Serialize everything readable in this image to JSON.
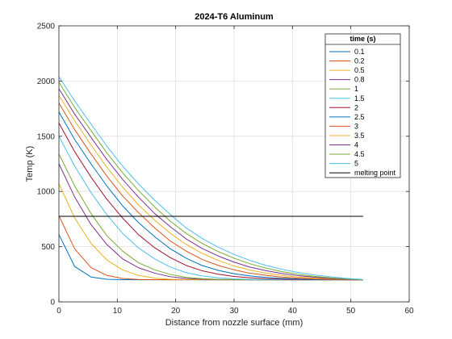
{
  "chart_data": {
    "type": "line",
    "title": "2024-T6 Aluminum",
    "xlabel": "Distance from nozzle surface (mm)",
    "ylabel": "Temp (K)",
    "xlim": [
      0,
      60
    ],
    "ylim": [
      0,
      2500
    ],
    "xticks": [
      "0",
      "10",
      "20",
      "30",
      "40",
      "50",
      "60"
    ],
    "yticks": [
      "0",
      "500",
      "1000",
      "1500",
      "2000",
      "2500"
    ],
    "grid": true,
    "legend": {
      "title": "time (s)",
      "placement": "top-right"
    },
    "series": [
      {
        "name": "0.1",
        "color": "#0072BD",
        "x": [
          0,
          2.7,
          5.5,
          8.2,
          10.9,
          13.6,
          16.4,
          19.1,
          21.8,
          24.5,
          27.3,
          30,
          32.7,
          35.5,
          38.2,
          40.9,
          43.6,
          46.4,
          49.1,
          51.8,
          52.1
        ],
        "y": [
          610,
          320,
          225,
          205,
          201,
          200,
          200,
          200,
          200,
          200,
          200,
          200,
          200,
          200,
          200,
          200,
          200,
          200,
          200,
          200,
          200
        ]
      },
      {
        "name": "0.2",
        "color": "#D95319",
        "x": [
          0,
          2.7,
          5.5,
          8.2,
          10.9,
          13.6,
          16.4,
          19.1,
          21.8,
          24.5,
          27.3,
          30,
          32.7,
          35.5,
          38.2,
          40.9,
          43.6,
          46.4,
          49.1,
          51.8,
          52.1
        ],
        "y": [
          780,
          480,
          310,
          240,
          212,
          203,
          201,
          200,
          200,
          200,
          200,
          200,
          200,
          200,
          200,
          200,
          200,
          200,
          200,
          200,
          200
        ]
      },
      {
        "name": "0.5",
        "color": "#EDB120",
        "x": [
          0,
          2.7,
          5.5,
          8.2,
          10.9,
          13.6,
          16.4,
          19.1,
          21.8,
          24.5,
          27.3,
          30,
          32.7,
          35.5,
          38.2,
          40.9,
          43.6,
          46.4,
          49.1,
          51.8,
          52.1
        ],
        "y": [
          1070,
          760,
          530,
          380,
          290,
          240,
          215,
          205,
          202,
          201,
          200,
          200,
          200,
          200,
          200,
          200,
          200,
          200,
          200,
          200,
          200
        ]
      },
      {
        "name": "0.8",
        "color": "#7E2F8E",
        "x": [
          0,
          2.7,
          5.5,
          8.2,
          10.9,
          13.6,
          16.4,
          19.1,
          21.8,
          24.5,
          27.3,
          30,
          32.7,
          35.5,
          38.2,
          40.9,
          43.6,
          46.4,
          49.1,
          51.8,
          52.1
        ],
        "y": [
          1250,
          950,
          700,
          520,
          390,
          310,
          260,
          228,
          212,
          205,
          202,
          201,
          200,
          200,
          200,
          200,
          200,
          200,
          200,
          200,
          200
        ]
      },
      {
        "name": "1",
        "color": "#77AC30",
        "x": [
          0,
          2.7,
          5.5,
          8.2,
          10.9,
          13.6,
          16.4,
          19.1,
          21.8,
          24.5,
          27.3,
          30,
          32.7,
          35.5,
          38.2,
          40.9,
          43.6,
          46.4,
          49.1,
          51.8,
          52.1
        ],
        "y": [
          1340,
          1050,
          800,
          600,
          460,
          355,
          290,
          248,
          222,
          210,
          204,
          202,
          201,
          200,
          200,
          200,
          200,
          200,
          200,
          200,
          200
        ]
      },
      {
        "name": "1.5",
        "color": "#4DBEEE",
        "x": [
          0,
          2.7,
          5.5,
          8.2,
          10.9,
          13.6,
          16.4,
          19.1,
          21.8,
          24.5,
          27.3,
          30,
          32.7,
          35.5,
          38.2,
          40.9,
          43.6,
          46.4,
          49.1,
          51.8,
          52.1
        ],
        "y": [
          1500,
          1230,
          990,
          790,
          620,
          490,
          390,
          315,
          265,
          235,
          218,
          208,
          204,
          202,
          201,
          200,
          200,
          200,
          200,
          200,
          200
        ]
      },
      {
        "name": "2",
        "color": "#A2142F",
        "x": [
          0,
          2.7,
          5.5,
          8.2,
          10.9,
          13.6,
          16.4,
          19.1,
          21.8,
          24.5,
          27.3,
          30,
          32.7,
          35.5,
          38.2,
          40.9,
          43.6,
          46.4,
          49.1,
          51.8,
          52.1
        ],
        "y": [
          1620,
          1360,
          1130,
          930,
          760,
          610,
          490,
          400,
          330,
          282,
          250,
          230,
          218,
          210,
          206,
          203,
          202,
          201,
          200,
          200,
          200
        ]
      },
      {
        "name": "2.5",
        "color": "#0072BD",
        "x": [
          0,
          2.7,
          5.5,
          8.2,
          10.9,
          13.6,
          16.4,
          19.1,
          21.8,
          24.5,
          27.3,
          30,
          32.7,
          35.5,
          38.2,
          40.9,
          43.6,
          46.4,
          49.1,
          51.8,
          52.1
        ],
        "y": [
          1720,
          1470,
          1250,
          1050,
          870,
          720,
          590,
          480,
          395,
          330,
          285,
          255,
          235,
          222,
          213,
          207,
          204,
          202,
          201,
          200,
          200
        ]
      },
      {
        "name": "3",
        "color": "#D95319",
        "x": [
          0,
          2.7,
          5.5,
          8.2,
          10.9,
          13.6,
          16.4,
          19.1,
          21.8,
          24.5,
          27.3,
          30,
          32.7,
          35.5,
          38.2,
          40.9,
          43.6,
          46.4,
          49.1,
          51.8,
          52.1
        ],
        "y": [
          1800,
          1560,
          1340,
          1140,
          960,
          810,
          670,
          550,
          460,
          385,
          330,
          290,
          260,
          240,
          225,
          215,
          208,
          204,
          202,
          200,
          200
        ]
      },
      {
        "name": "3.5",
        "color": "#EDB120",
        "x": [
          0,
          2.7,
          5.5,
          8.2,
          10.9,
          13.6,
          16.4,
          19.1,
          21.8,
          24.5,
          27.3,
          30,
          32.7,
          35.5,
          38.2,
          40.9,
          43.6,
          46.4,
          49.1,
          51.8,
          52.1
        ],
        "y": [
          1870,
          1640,
          1420,
          1220,
          1040,
          880,
          740,
          620,
          520,
          440,
          375,
          325,
          288,
          260,
          240,
          225,
          215,
          208,
          203,
          200,
          200
        ]
      },
      {
        "name": "4",
        "color": "#7E2F8E",
        "x": [
          0,
          2.7,
          5.5,
          8.2,
          10.9,
          13.6,
          16.4,
          19.1,
          21.8,
          24.5,
          27.3,
          30,
          32.7,
          35.5,
          38.2,
          40.9,
          43.6,
          46.4,
          49.1,
          51.8,
          52.1
        ],
        "y": [
          1930,
          1700,
          1490,
          1290,
          1110,
          950,
          800,
          680,
          570,
          485,
          415,
          360,
          315,
          282,
          257,
          238,
          224,
          213,
          205,
          201,
          200
        ]
      },
      {
        "name": "4.5",
        "color": "#77AC30",
        "x": [
          0,
          2.7,
          5.5,
          8.2,
          10.9,
          13.6,
          16.4,
          19.1,
          21.8,
          24.5,
          27.3,
          30,
          32.7,
          35.5,
          38.2,
          40.9,
          43.6,
          46.4,
          49.1,
          51.8,
          52.1
        ],
        "y": [
          1990,
          1760,
          1550,
          1350,
          1170,
          1010,
          860,
          730,
          620,
          530,
          455,
          395,
          345,
          305,
          274,
          250,
          232,
          218,
          208,
          202,
          200
        ]
      },
      {
        "name": "5",
        "color": "#4DBEEE",
        "x": [
          0,
          2.7,
          5.5,
          8.2,
          10.9,
          13.6,
          16.4,
          19.1,
          21.8,
          24.5,
          27.3,
          30,
          32.7,
          35.5,
          38.2,
          40.9,
          43.6,
          46.4,
          49.1,
          51.8,
          52.1
        ],
        "y": [
          2040,
          1820,
          1610,
          1410,
          1230,
          1070,
          920,
          790,
          670,
          575,
          495,
          430,
          375,
          330,
          295,
          267,
          245,
          228,
          214,
          204,
          200
        ]
      },
      {
        "name": "melting point",
        "color": "#000000",
        "x": [
          0,
          52.1
        ],
        "y": [
          775,
          775
        ]
      }
    ]
  }
}
